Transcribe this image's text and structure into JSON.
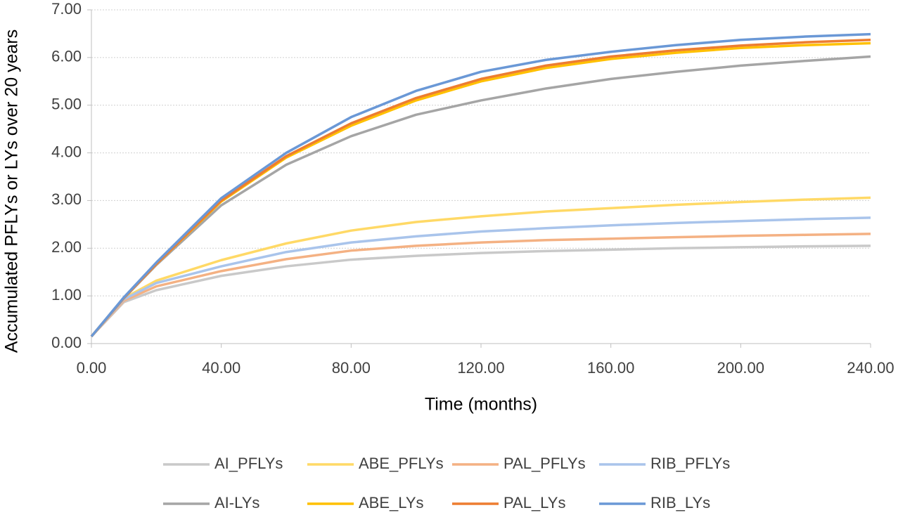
{
  "chart_data": {
    "type": "line",
    "x_label": "Time (months)",
    "y_label": "Accumulated PFLYs or LYs over 20 years",
    "x": [
      0,
      10,
      20,
      40,
      60,
      80,
      100,
      120,
      140,
      160,
      180,
      200,
      220,
      240
    ],
    "xlim": [
      0,
      240
    ],
    "xticks": [
      {
        "value": 0,
        "label": "0.00"
      },
      {
        "value": 40,
        "label": "40.00"
      },
      {
        "value": 80,
        "label": "80.00"
      },
      {
        "value": 120,
        "label": "120.00"
      },
      {
        "value": 160,
        "label": "160.00"
      },
      {
        "value": 200,
        "label": "200.00"
      },
      {
        "value": 240,
        "label": "240.00"
      }
    ],
    "ylim": [
      0,
      7
    ],
    "yticks": [
      {
        "value": 0,
        "label": "0.00"
      },
      {
        "value": 1,
        "label": "1.00"
      },
      {
        "value": 2,
        "label": "2.00"
      },
      {
        "value": 3,
        "label": "3.00"
      },
      {
        "value": 4,
        "label": "4.00"
      },
      {
        "value": 5,
        "label": "5.00"
      },
      {
        "value": 6,
        "label": "6.00"
      },
      {
        "value": 7,
        "label": "7.00"
      }
    ],
    "grid": true,
    "legend": "bottom",
    "series": [
      {
        "name": "AI_PFLYs",
        "color": "#c9c9c9",
        "values": [
          0.15,
          0.87,
          1.12,
          1.42,
          1.62,
          1.76,
          1.84,
          1.9,
          1.94,
          1.97,
          2.0,
          2.02,
          2.04,
          2.05
        ]
      },
      {
        "name": "ABE_PFLYs",
        "color": "#ffd966",
        "values": [
          0.15,
          0.95,
          1.32,
          1.75,
          2.1,
          2.37,
          2.55,
          2.67,
          2.77,
          2.84,
          2.91,
          2.97,
          3.02,
          3.06
        ]
      },
      {
        "name": "PAL_PFLYs",
        "color": "#f4b183",
        "values": [
          0.15,
          0.9,
          1.2,
          1.52,
          1.77,
          1.95,
          2.05,
          2.12,
          2.17,
          2.2,
          2.23,
          2.26,
          2.28,
          2.3
        ]
      },
      {
        "name": "RIB_PFLYs",
        "color": "#a9c4eb",
        "values": [
          0.15,
          0.93,
          1.27,
          1.62,
          1.92,
          2.12,
          2.25,
          2.35,
          2.42,
          2.48,
          2.53,
          2.57,
          2.61,
          2.64
        ]
      },
      {
        "name": "AI-LYs",
        "color": "#a5a5a5",
        "values": [
          0.15,
          0.95,
          1.65,
          2.9,
          3.75,
          4.35,
          4.8,
          5.1,
          5.35,
          5.55,
          5.7,
          5.83,
          5.93,
          6.02
        ]
      },
      {
        "name": "ABE_LYs",
        "color": "#ffc000",
        "values": [
          0.15,
          0.96,
          1.67,
          2.98,
          3.9,
          4.57,
          5.1,
          5.5,
          5.78,
          5.97,
          6.1,
          6.2,
          6.26,
          6.3
        ]
      },
      {
        "name": "PAL_LYs",
        "color": "#ed7d31",
        "values": [
          0.15,
          0.96,
          1.67,
          3.0,
          3.93,
          4.62,
          5.15,
          5.55,
          5.83,
          6.02,
          6.15,
          6.25,
          6.32,
          6.37
        ]
      },
      {
        "name": "RIB_LYs",
        "color": "#6a98d6",
        "values": [
          0.15,
          0.97,
          1.7,
          3.05,
          4.0,
          4.75,
          5.3,
          5.7,
          5.95,
          6.12,
          6.26,
          6.37,
          6.44,
          6.49
        ]
      }
    ]
  }
}
